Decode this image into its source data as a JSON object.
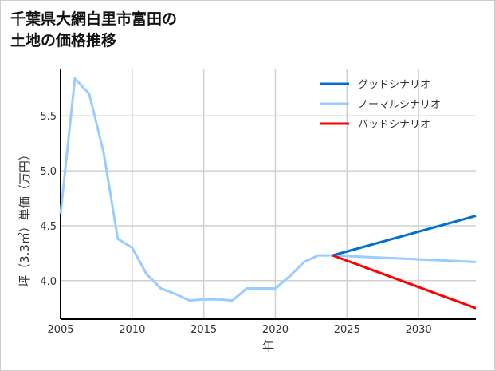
{
  "chart_data": {
    "type": "line",
    "title": "千葉県大網白里市富田の\n土地の価格推移",
    "xlabel": "年",
    "ylabel": "坪（3.3㎡）単価（万円）",
    "xlim": [
      2005,
      2034
    ],
    "ylim": [
      3.65,
      5.93
    ],
    "xticks": [
      2005,
      2010,
      2015,
      2020,
      2025,
      2030
    ],
    "yticks": [
      4.0,
      4.5,
      5.0,
      5.5
    ],
    "grid": true,
    "legend_position": "top-right",
    "series": [
      {
        "name": "グッドシナリオ",
        "color": "#0070cc",
        "x": [
          2024,
          2034
        ],
        "y": [
          4.23,
          4.59
        ]
      },
      {
        "name": "ノーマルシナリオ",
        "color": "#99ccff",
        "x": [
          2005,
          2006,
          2007,
          2008,
          2009,
          2010,
          2011,
          2012,
          2013,
          2014,
          2015,
          2016,
          2017,
          2018,
          2019,
          2020,
          2021,
          2022,
          2023,
          2024,
          2034
        ],
        "y": [
          4.61,
          5.84,
          5.7,
          5.17,
          4.38,
          4.3,
          4.06,
          3.93,
          3.88,
          3.82,
          3.83,
          3.83,
          3.82,
          3.93,
          3.93,
          3.93,
          4.04,
          4.17,
          4.23,
          4.23,
          4.17
        ]
      },
      {
        "name": "バッドシナリオ",
        "color": "#ff0000",
        "x": [
          2024,
          2034
        ],
        "y": [
          4.23,
          3.75
        ]
      }
    ]
  }
}
